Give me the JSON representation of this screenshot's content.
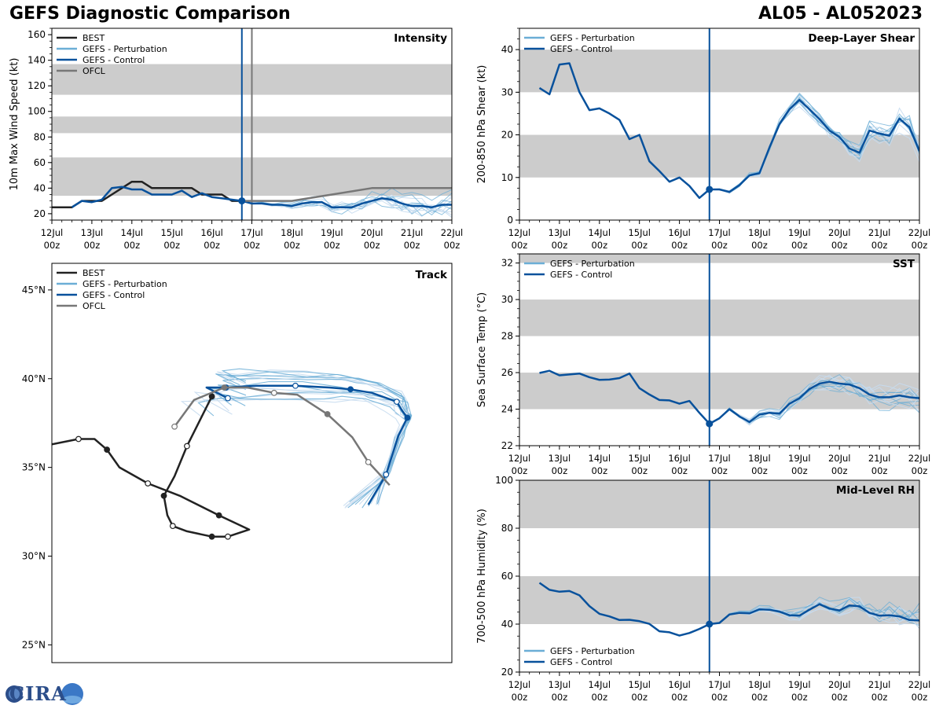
{
  "title_left": "GEFS Diagnostic Comparison",
  "title_right": "AL05 - AL052023",
  "logo_text": "CIRA",
  "colors": {
    "best": "#222222",
    "perturbation": "#6baed6",
    "control": "#08519c",
    "ofcl": "#777777",
    "band": "#cccccc",
    "perturbation_light": "#c6dbef"
  },
  "time_axis": {
    "labels": [
      [
        "12Jul",
        "00z"
      ],
      [
        "13Jul",
        "00z"
      ],
      [
        "14Jul",
        "00z"
      ],
      [
        "15Jul",
        "00z"
      ],
      [
        "16Jul",
        "00z"
      ],
      [
        "17Jul",
        "00z"
      ],
      [
        "18Jul",
        "00z"
      ],
      [
        "19Jul",
        "00z"
      ],
      [
        "20Jul",
        "00z"
      ],
      [
        "21Jul",
        "00z"
      ],
      [
        "22Jul",
        "00z"
      ]
    ],
    "range_days": [
      0,
      10
    ],
    "init_day": 4.75,
    "ofcl_day": 5.0
  },
  "chart_data": [
    {
      "id": "intensity",
      "type": "line",
      "title": "Intensity",
      "ylabel": "10m Max Wind Speed (kt)",
      "ylim": [
        15,
        165
      ],
      "yticks": [
        20,
        40,
        60,
        80,
        100,
        120,
        140,
        160
      ],
      "bands": [
        [
          34,
          64
        ],
        [
          83,
          96
        ],
        [
          113,
          137
        ]
      ],
      "legend": [
        "BEST",
        "GEFS - Perturbation",
        "GEFS - Control",
        "OFCL"
      ],
      "series": [
        {
          "name": "BEST",
          "x": [
            0,
            0.5,
            0.75,
            1,
            1.25,
            1.5,
            1.75,
            2,
            2.25,
            2.5,
            2.75,
            3,
            3.25,
            3.5,
            3.75,
            4,
            4.25,
            4.5,
            4.75
          ],
          "values": [
            25,
            25,
            30,
            30,
            30,
            35,
            40,
            45,
            45,
            40,
            40,
            40,
            40,
            40,
            35,
            35,
            35,
            30,
            30
          ]
        },
        {
          "name": "GEFS - Control",
          "x": [
            0.5,
            0.75,
            1,
            1.25,
            1.5,
            1.75,
            2,
            2.25,
            2.5,
            2.75,
            3,
            3.25,
            3.5,
            3.75,
            4,
            4.25,
            4.5,
            4.75,
            5,
            5.25,
            5.5,
            5.75,
            6,
            6.25,
            6.5,
            6.75,
            7,
            7.25,
            7.5,
            7.75,
            8,
            8.25,
            8.5,
            8.75,
            9,
            9.25,
            9.5,
            9.75,
            10
          ],
          "values": [
            25,
            30,
            29,
            31,
            40,
            41,
            39,
            39,
            35,
            35,
            35,
            38,
            33,
            36,
            33,
            32,
            31,
            30,
            28,
            28,
            27,
            27,
            26,
            28,
            29,
            29,
            25,
            25,
            25,
            28,
            30,
            32,
            31,
            28,
            26,
            26,
            25,
            27,
            27
          ]
        },
        {
          "name": "OFCL",
          "x": [
            4.75,
            5,
            6,
            7,
            8,
            9,
            10
          ],
          "values": [
            30,
            30,
            30,
            35,
            40,
            40,
            40
          ]
        }
      ],
      "perturbation_count": 12
    },
    {
      "id": "shear",
      "type": "line",
      "title": "Deep-Layer Shear",
      "ylabel": "200-850 hPa Shear (kt)",
      "ylim": [
        0,
        45
      ],
      "yticks": [
        0,
        10,
        20,
        30,
        40
      ],
      "bands": [
        [
          10,
          20
        ],
        [
          30,
          40
        ]
      ],
      "legend": [
        "GEFS - Perturbation",
        "GEFS - Control"
      ],
      "series": [
        {
          "name": "GEFS - Control",
          "x": [
            0.5,
            0.75,
            1,
            1.25,
            1.5,
            1.75,
            2,
            2.25,
            2.5,
            2.75,
            3,
            3.25,
            3.5,
            3.75,
            4,
            4.25,
            4.5,
            4.75,
            5,
            5.25,
            5.5,
            5.75,
            6,
            6.25,
            6.5,
            6.75,
            7,
            7.25,
            7.5,
            7.75,
            8,
            8.25,
            8.5,
            8.75,
            9,
            9.25,
            9.5,
            9.75,
            10
          ],
          "values": [
            31,
            29.5,
            36.5,
            36.8,
            30,
            25.8,
            26.2,
            25,
            23.5,
            19,
            20,
            13.8,
            11.5,
            9,
            10,
            8,
            5.2,
            7.2,
            7.2,
            6.6,
            8.2,
            10.5,
            11,
            17,
            22.5,
            26,
            28.2,
            26,
            23.7,
            21,
            19.5,
            16.8,
            15.8,
            21,
            20.3,
            19.8,
            23.8,
            21.8,
            16.2
          ]
        }
      ],
      "perturbation_count": 14
    },
    {
      "id": "track",
      "type": "scatter",
      "title": "Track",
      "lat_ticks": [
        "45°N",
        "40°N",
        "35°N",
        "30°N",
        "25°N"
      ],
      "lat_values": [
        45,
        40,
        35,
        30,
        25
      ],
      "lat_range": [
        24,
        46.5
      ],
      "lon_range": [
        -72,
        -49.5
      ],
      "legend": [
        "BEST",
        "GEFS - Perturbation",
        "GEFS - Control",
        "OFCL"
      ],
      "series": [
        {
          "name": "BEST",
          "lon": [
            -72,
            -70.5,
            -69.6,
            -68.9,
            -68.2,
            -66.6,
            -64.8,
            -62.6,
            -60.9,
            -62.1,
            -62.2,
            -63.0,
            -64.4,
            -65.2,
            -65.5,
            -65.7,
            -65.1,
            -64.4,
            -63.6,
            -63.0
          ],
          "lat": [
            36.3,
            36.6,
            36.6,
            36.0,
            35.0,
            34.1,
            33.4,
            32.3,
            31.5,
            31.1,
            31.1,
            31.1,
            31.4,
            31.7,
            32.3,
            33.4,
            34.5,
            36.2,
            37.8,
            39.0
          ]
        },
        {
          "name": "GEFS - Control",
          "lon": [
            -54.2,
            -53.2,
            -52.5,
            -52.0,
            -52.3,
            -52.6,
            -54.0,
            -55.2,
            -56.4,
            -58.3,
            -60.5,
            -62.2,
            -63.3,
            -62.1
          ],
          "lat": [
            32.9,
            34.6,
            36.8,
            37.8,
            38.2,
            38.7,
            39.2,
            39.4,
            39.5,
            39.6,
            39.6,
            39.5,
            39.5,
            38.9
          ]
        },
        {
          "name": "OFCL",
          "lon": [
            -53.0,
            -54.2,
            -55.1,
            -56.5,
            -58.2,
            -59.5,
            -61.0,
            -62.3,
            -64.0,
            -65.1
          ],
          "lat": [
            34.0,
            35.3,
            36.7,
            38.0,
            39.1,
            39.2,
            39.5,
            39.5,
            38.8,
            37.3
          ]
        }
      ],
      "perturbation_count": 16
    },
    {
      "id": "sst",
      "type": "line",
      "title": "SST",
      "ylabel": "Sea Surface Temp (°C)",
      "ylim": [
        22,
        32.5
      ],
      "yticks": [
        22,
        24,
        26,
        28,
        30,
        32
      ],
      "bands": [
        [
          24,
          26
        ],
        [
          28,
          30
        ],
        [
          32,
          33
        ]
      ],
      "legend": [
        "GEFS - Perturbation",
        "GEFS - Control"
      ],
      "series": [
        {
          "name": "GEFS - Control",
          "x": [
            0.5,
            0.75,
            1,
            1.25,
            1.5,
            1.75,
            2,
            2.25,
            2.5,
            2.75,
            3,
            3.25,
            3.5,
            3.75,
            4,
            4.25,
            4.5,
            4.75,
            5,
            5.25,
            5.5,
            5.75,
            6,
            6.25,
            6.5,
            6.75,
            7,
            7.25,
            7.5,
            7.75,
            8,
            8.25,
            8.5,
            8.75,
            9,
            9.25,
            9.5,
            9.75,
            10
          ],
          "values": [
            25.98,
            26.1,
            25.85,
            25.9,
            25.95,
            25.75,
            25.6,
            25.62,
            25.7,
            25.95,
            25.15,
            24.8,
            24.5,
            24.48,
            24.3,
            24.45,
            23.8,
            23.2,
            23.5,
            24.0,
            23.6,
            23.3,
            23.7,
            23.8,
            23.75,
            24.3,
            24.6,
            25.1,
            25.4,
            25.5,
            25.4,
            25.35,
            25.15,
            24.8,
            24.65,
            24.65,
            24.75,
            24.65,
            24.6
          ]
        }
      ],
      "perturbation_count": 12
    },
    {
      "id": "rh",
      "type": "line",
      "title": "Mid-Level RH",
      "ylabel": "700-500 hPa Humidity (%)",
      "ylim": [
        20,
        100
      ],
      "yticks": [
        20,
        40,
        60,
        80,
        100
      ],
      "bands": [
        [
          40,
          60
        ],
        [
          80,
          100
        ]
      ],
      "legend": [
        "GEFS - Perturbation",
        "GEFS - Control"
      ],
      "series": [
        {
          "name": "GEFS - Control",
          "x": [
            0.5,
            0.75,
            1,
            1.25,
            1.5,
            1.75,
            2,
            2.25,
            2.5,
            2.75,
            3,
            3.25,
            3.5,
            3.75,
            4,
            4.25,
            4.5,
            4.75,
            5,
            5.25,
            5.5,
            5.75,
            6,
            6.25,
            6.5,
            6.75,
            7,
            7.25,
            7.5,
            7.75,
            8,
            8.25,
            8.5,
            8.75,
            9,
            9.25,
            9.5,
            9.75,
            10
          ],
          "values": [
            57.2,
            54.3,
            53.5,
            53.8,
            52,
            47.5,
            44.3,
            43.2,
            41.7,
            41.8,
            41.2,
            40.1,
            37,
            36.6,
            35.2,
            36.3,
            38,
            40,
            40.5,
            44,
            44.7,
            44.5,
            46.2,
            46,
            45.2,
            43.7,
            43.5,
            46,
            48.3,
            46.5,
            45.7,
            47.8,
            47.4,
            44.7,
            43.5,
            43.7,
            43.2,
            41.7,
            41.5
          ]
        }
      ],
      "perturbation_count": 12
    }
  ]
}
